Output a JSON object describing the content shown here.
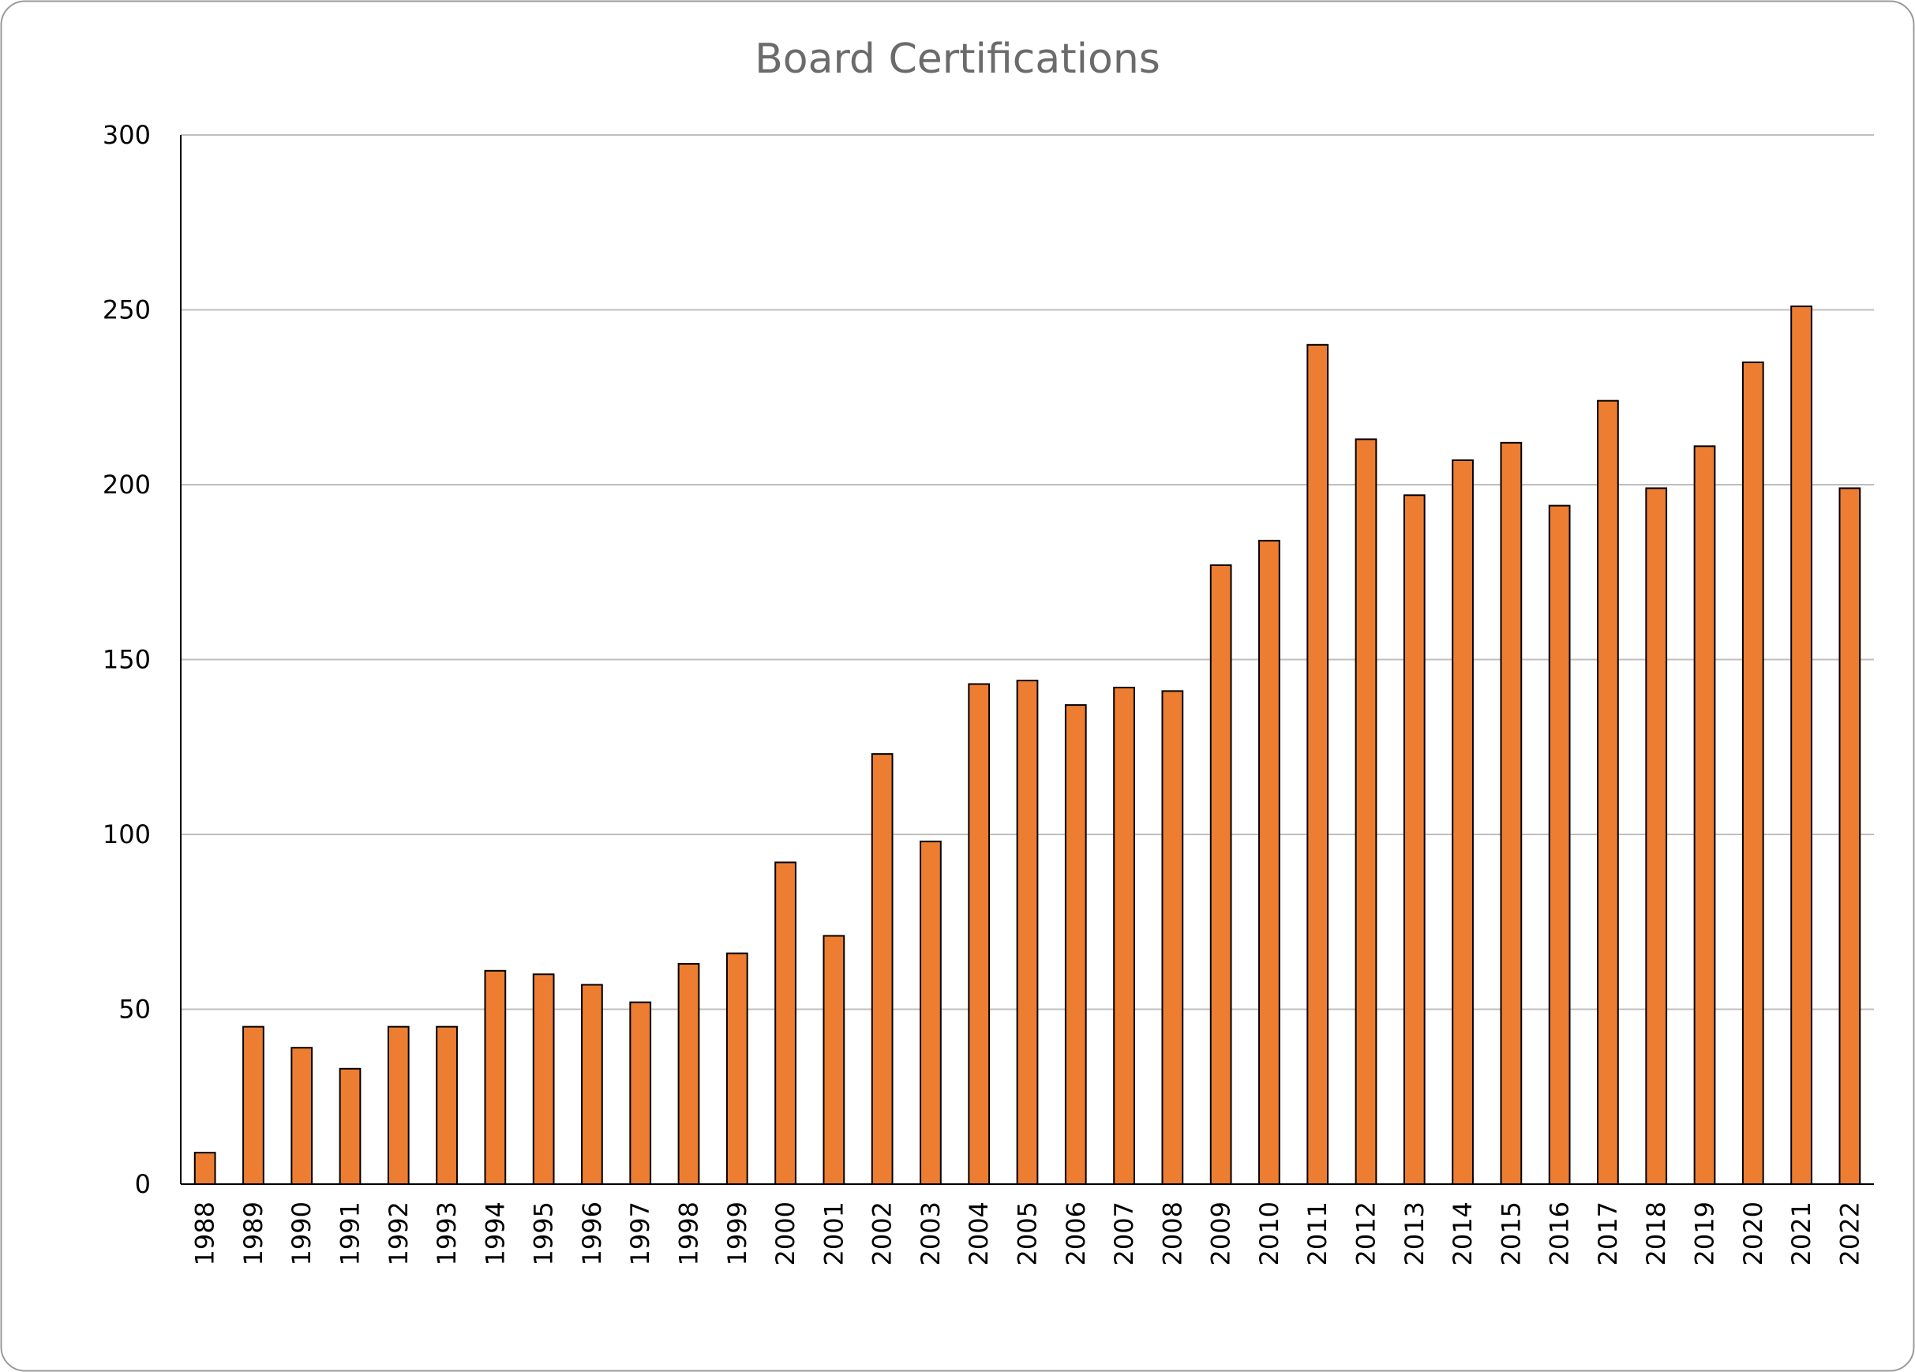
{
  "chart_data": {
    "type": "bar",
    "title": "Board Certifications",
    "xlabel": "",
    "ylabel": "",
    "ylim": [
      0,
      300
    ],
    "yticks": [
      0,
      50,
      100,
      150,
      200,
      250,
      300
    ],
    "grid": true,
    "legend": "none",
    "categories": [
      "1988",
      "1989",
      "1990",
      "1991",
      "1992",
      "1993",
      "1994",
      "1995",
      "1996",
      "1997",
      "1998",
      "1999",
      "2000",
      "2001",
      "2002",
      "2003",
      "2004",
      "2005",
      "2006",
      "2007",
      "2008",
      "2009",
      "2010",
      "2011",
      "2012",
      "2013",
      "2014",
      "2015",
      "2016",
      "2017",
      "2018",
      "2019",
      "2020",
      "2021",
      "2022"
    ],
    "values": [
      9,
      45,
      39,
      33,
      45,
      45,
      61,
      60,
      57,
      52,
      63,
      66,
      92,
      71,
      123,
      98,
      143,
      144,
      137,
      142,
      141,
      177,
      184,
      240,
      213,
      197,
      207,
      212,
      194,
      224,
      199,
      211,
      235,
      251,
      199
    ],
    "colors": {
      "bar_fill": "#ed7d31",
      "bar_stroke": "#000000",
      "gridline": "#bfbfbf",
      "axis": "#000000",
      "frame": "#9a9a9a"
    }
  }
}
